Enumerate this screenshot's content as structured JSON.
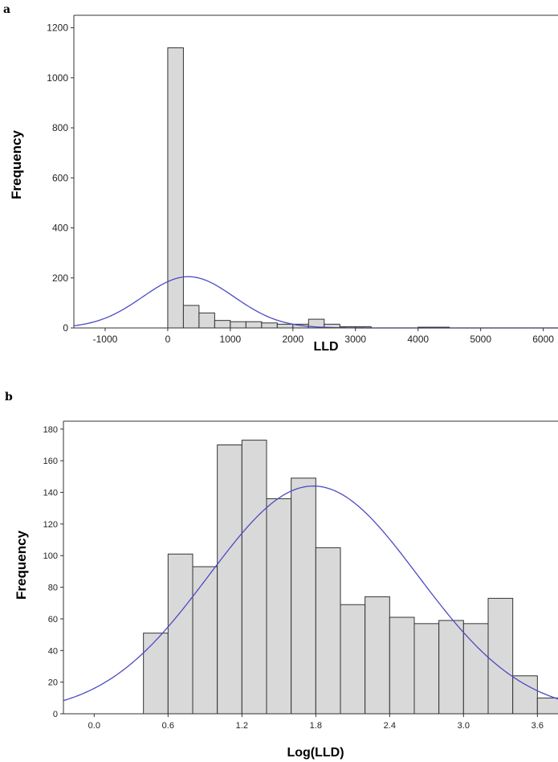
{
  "chart_data": [
    {
      "type": "bar",
      "panel": "a",
      "xlabel": "LLD",
      "ylabel": "Frequency",
      "xlim": [
        -1500,
        6300
      ],
      "ylim": [
        0,
        1250
      ],
      "x_ticks": [
        -1000,
        0,
        1000,
        2000,
        3000,
        4000,
        5000,
        6000
      ],
      "x_tick_labels": [
        "-1000",
        "0",
        "1000",
        "2000",
        "3000",
        "4000",
        "5000",
        "6000"
      ],
      "y_ticks": [
        0,
        200,
        400,
        600,
        800,
        1000,
        1200
      ],
      "y_tick_labels": [
        "0",
        "200",
        "400",
        "600",
        "800",
        "1000",
        "1200"
      ],
      "bin_width": 250,
      "bin_starts": [
        0,
        250,
        500,
        750,
        1000,
        1250,
        1500,
        1750,
        2000,
        2250,
        2500,
        2750,
        3000,
        4000,
        4250
      ],
      "values": [
        1120,
        90,
        60,
        30,
        25,
        25,
        20,
        15,
        15,
        35,
        15,
        5,
        5,
        3,
        3
      ],
      "fit_curve": {
        "type": "normal",
        "mean": 330,
        "sd": 730,
        "peak": 205
      }
    },
    {
      "type": "bar",
      "panel": "b",
      "xlabel": "Log(LLD)",
      "ylabel": "Frequency",
      "xlim": [
        -0.25,
        3.8
      ],
      "ylim": [
        0,
        185
      ],
      "x_ticks": [
        0.0,
        0.6,
        1.2,
        1.8,
        2.4,
        3.0,
        3.6
      ],
      "x_tick_labels": [
        "0.0",
        "0.6",
        "1.2",
        "1.8",
        "2.4",
        "3.0",
        "3.6"
      ],
      "y_ticks": [
        0,
        20,
        40,
        60,
        80,
        100,
        120,
        140,
        160,
        180
      ],
      "y_tick_labels": [
        "0",
        "20",
        "40",
        "60",
        "80",
        "100",
        "120",
        "140",
        "160",
        "180"
      ],
      "bin_width": 0.2,
      "bin_starts": [
        0.4,
        0.6,
        0.8,
        1.0,
        1.2,
        1.4,
        1.6,
        1.8,
        2.0,
        2.2,
        2.4,
        2.6,
        2.8,
        3.0,
        3.2,
        3.4,
        3.6
      ],
      "values": [
        51,
        101,
        93,
        170,
        173,
        136,
        149,
        105,
        69,
        74,
        61,
        57,
        59,
        57,
        73,
        24,
        10
      ],
      "fit_curve": {
        "type": "normal",
        "mean": 1.78,
        "sd": 0.85,
        "peak": 144
      }
    }
  ]
}
